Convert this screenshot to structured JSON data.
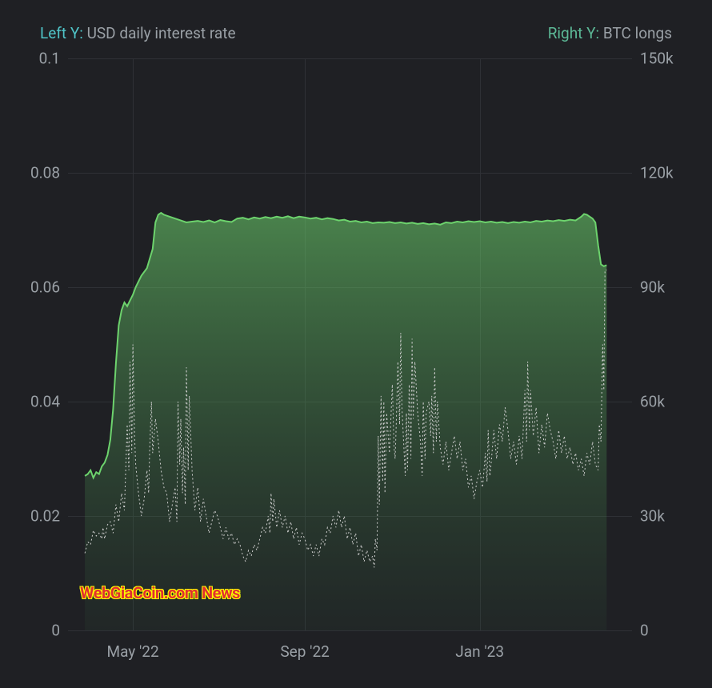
{
  "legend": {
    "left_prefix": "Left Y:",
    "left_label": "USD daily interest rate",
    "right_prefix": "Right Y:",
    "right_label": "BTC longs"
  },
  "chart": {
    "type": "line-area",
    "background_color": "#1f2024",
    "grid_color": "#2f3136",
    "text_color": "#9aa0a6",
    "label_fontsize": 19,
    "axis_left": {
      "color": "#4fc3c7",
      "ylim": [
        0,
        0.1
      ],
      "ticks": [
        0,
        0.02,
        0.04,
        0.06,
        0.08,
        0.1
      ],
      "tick_labels": [
        "0",
        "0.02",
        "0.04",
        "0.06",
        "0.08",
        "0.1"
      ]
    },
    "axis_right": {
      "color": "#5cb896",
      "ylim": [
        0,
        150000
      ],
      "ticks": [
        0,
        30000,
        60000,
        90000,
        120000,
        150000
      ],
      "tick_labels": [
        "0",
        "30k",
        "60k",
        "90k",
        "120k",
        "150k"
      ]
    },
    "axis_x": {
      "range_months": 13,
      "ticks": [
        0.115,
        0.42,
        0.73
      ],
      "tick_labels": [
        "May '22",
        "Sep '22",
        "Jan '23"
      ]
    },
    "series_area": {
      "name": "BTC longs",
      "axis": "right",
      "color_line": "#6dd36d",
      "color_fill_top": "rgba(109,211,109,0.55)",
      "color_fill_bottom": "rgba(60,120,70,0.08)",
      "line_width": 2,
      "data": [
        [
          0.03,
          40500
        ],
        [
          0.035,
          41000
        ],
        [
          0.04,
          42000
        ],
        [
          0.045,
          40000
        ],
        [
          0.05,
          41500
        ],
        [
          0.055,
          41000
        ],
        [
          0.06,
          43000
        ],
        [
          0.065,
          44000
        ],
        [
          0.07,
          46000
        ],
        [
          0.075,
          50000
        ],
        [
          0.08,
          58000
        ],
        [
          0.085,
          70000
        ],
        [
          0.09,
          80000
        ],
        [
          0.095,
          84000
        ],
        [
          0.1,
          86000
        ],
        [
          0.105,
          85000
        ],
        [
          0.11,
          86500
        ],
        [
          0.115,
          88000
        ],
        [
          0.12,
          90000
        ],
        [
          0.13,
          93000
        ],
        [
          0.14,
          95000
        ],
        [
          0.15,
          100000
        ],
        [
          0.155,
          107000
        ],
        [
          0.16,
          109000
        ],
        [
          0.165,
          109500
        ],
        [
          0.17,
          109000
        ],
        [
          0.18,
          108500
        ],
        [
          0.19,
          108000
        ],
        [
          0.2,
          107500
        ],
        [
          0.21,
          107000
        ],
        [
          0.22,
          107200
        ],
        [
          0.23,
          107400
        ],
        [
          0.24,
          107100
        ],
        [
          0.25,
          107500
        ],
        [
          0.26,
          107000
        ],
        [
          0.27,
          107600
        ],
        [
          0.28,
          107300
        ],
        [
          0.29,
          107100
        ],
        [
          0.3,
          108000
        ],
        [
          0.31,
          108200
        ],
        [
          0.32,
          107800
        ],
        [
          0.33,
          108300
        ],
        [
          0.34,
          108000
        ],
        [
          0.35,
          108400
        ],
        [
          0.36,
          108100
        ],
        [
          0.37,
          108500
        ],
        [
          0.38,
          108200
        ],
        [
          0.39,
          108600
        ],
        [
          0.4,
          108100
        ],
        [
          0.41,
          108500
        ],
        [
          0.42,
          108300
        ],
        [
          0.43,
          108000
        ],
        [
          0.44,
          108200
        ],
        [
          0.45,
          107800
        ],
        [
          0.46,
          108100
        ],
        [
          0.47,
          107900
        ],
        [
          0.48,
          107500
        ],
        [
          0.49,
          107700
        ],
        [
          0.5,
          107200
        ],
        [
          0.51,
          107400
        ],
        [
          0.52,
          107000
        ],
        [
          0.53,
          107200
        ],
        [
          0.54,
          106800
        ],
        [
          0.55,
          107000
        ],
        [
          0.56,
          106900
        ],
        [
          0.57,
          107100
        ],
        [
          0.58,
          106800
        ],
        [
          0.59,
          107000
        ],
        [
          0.6,
          106700
        ],
        [
          0.61,
          106900
        ],
        [
          0.62,
          106600
        ],
        [
          0.63,
          106800
        ],
        [
          0.64,
          106500
        ],
        [
          0.65,
          106700
        ],
        [
          0.66,
          106400
        ],
        [
          0.67,
          107000
        ],
        [
          0.68,
          106800
        ],
        [
          0.69,
          107200
        ],
        [
          0.7,
          107000
        ],
        [
          0.71,
          107300
        ],
        [
          0.72,
          107100
        ],
        [
          0.73,
          107300
        ],
        [
          0.74,
          107000
        ],
        [
          0.75,
          107200
        ],
        [
          0.76,
          106900
        ],
        [
          0.77,
          107100
        ],
        [
          0.78,
          106800
        ],
        [
          0.79,
          107100
        ],
        [
          0.8,
          106900
        ],
        [
          0.81,
          107200
        ],
        [
          0.82,
          107000
        ],
        [
          0.83,
          107400
        ],
        [
          0.84,
          107200
        ],
        [
          0.85,
          107500
        ],
        [
          0.86,
          107300
        ],
        [
          0.87,
          107600
        ],
        [
          0.88,
          107400
        ],
        [
          0.89,
          107700
        ],
        [
          0.9,
          107500
        ],
        [
          0.91,
          108500
        ],
        [
          0.915,
          109200
        ],
        [
          0.92,
          109000
        ],
        [
          0.925,
          108500
        ],
        [
          0.93,
          108000
        ],
        [
          0.935,
          107000
        ],
        [
          0.94,
          101000
        ],
        [
          0.945,
          96000
        ],
        [
          0.95,
          95500
        ],
        [
          0.955,
          95800
        ]
      ]
    },
    "series_line": {
      "name": "USD daily interest rate",
      "axis": "left",
      "color": "#cccccc",
      "line_width": 1,
      "dash": "2,3",
      "data": [
        [
          0.03,
          0.0135
        ],
        [
          0.035,
          0.0155
        ],
        [
          0.04,
          0.015
        ],
        [
          0.045,
          0.0175
        ],
        [
          0.05,
          0.0165
        ],
        [
          0.055,
          0.017
        ],
        [
          0.06,
          0.016
        ],
        [
          0.062,
          0.018
        ],
        [
          0.065,
          0.016
        ],
        [
          0.07,
          0.0185
        ],
        [
          0.075,
          0.019
        ],
        [
          0.08,
          0.017
        ],
        [
          0.085,
          0.022
        ],
        [
          0.09,
          0.019
        ],
        [
          0.095,
          0.024
        ],
        [
          0.1,
          0.021
        ],
        [
          0.105,
          0.036
        ],
        [
          0.108,
          0.028
        ],
        [
          0.11,
          0.047
        ],
        [
          0.113,
          0.031
        ],
        [
          0.115,
          0.05
        ],
        [
          0.118,
          0.034
        ],
        [
          0.12,
          0.029
        ],
        [
          0.125,
          0.024
        ],
        [
          0.13,
          0.02
        ],
        [
          0.135,
          0.023
        ],
        [
          0.14,
          0.028
        ],
        [
          0.143,
          0.024
        ],
        [
          0.145,
          0.032
        ],
        [
          0.148,
          0.04
        ],
        [
          0.15,
          0.031
        ],
        [
          0.155,
          0.037
        ],
        [
          0.16,
          0.033
        ],
        [
          0.165,
          0.028
        ],
        [
          0.17,
          0.025
        ],
        [
          0.175,
          0.024
        ],
        [
          0.18,
          0.019
        ],
        [
          0.185,
          0.022
        ],
        [
          0.19,
          0.025
        ],
        [
          0.193,
          0.019
        ],
        [
          0.195,
          0.04
        ],
        [
          0.198,
          0.029
        ],
        [
          0.2,
          0.037
        ],
        [
          0.203,
          0.024
        ],
        [
          0.205,
          0.032
        ],
        [
          0.208,
          0.022
        ],
        [
          0.21,
          0.046
        ],
        [
          0.213,
          0.028
        ],
        [
          0.215,
          0.041
        ],
        [
          0.22,
          0.028
        ],
        [
          0.225,
          0.021
        ],
        [
          0.23,
          0.025
        ],
        [
          0.235,
          0.019
        ],
        [
          0.24,
          0.023
        ],
        [
          0.245,
          0.02
        ],
        [
          0.25,
          0.017
        ],
        [
          0.255,
          0.019
        ],
        [
          0.26,
          0.021
        ],
        [
          0.265,
          0.02
        ],
        [
          0.27,
          0.018
        ],
        [
          0.275,
          0.016
        ],
        [
          0.28,
          0.018
        ],
        [
          0.285,
          0.016
        ],
        [
          0.29,
          0.017
        ],
        [
          0.295,
          0.015
        ],
        [
          0.3,
          0.016
        ],
        [
          0.305,
          0.015
        ],
        [
          0.31,
          0.013
        ],
        [
          0.315,
          0.012
        ],
        [
          0.32,
          0.014
        ],
        [
          0.325,
          0.013
        ],
        [
          0.33,
          0.015
        ],
        [
          0.335,
          0.014
        ],
        [
          0.34,
          0.016
        ],
        [
          0.345,
          0.018
        ],
        [
          0.35,
          0.017
        ],
        [
          0.355,
          0.02
        ],
        [
          0.358,
          0.017
        ],
        [
          0.36,
          0.024
        ],
        [
          0.363,
          0.019
        ],
        [
          0.365,
          0.023
        ],
        [
          0.37,
          0.018
        ],
        [
          0.375,
          0.021
        ],
        [
          0.38,
          0.018
        ],
        [
          0.385,
          0.02
        ],
        [
          0.39,
          0.017
        ],
        [
          0.395,
          0.019
        ],
        [
          0.4,
          0.016
        ],
        [
          0.405,
          0.018
        ],
        [
          0.41,
          0.015
        ],
        [
          0.415,
          0.017
        ],
        [
          0.42,
          0.016
        ],
        [
          0.425,
          0.014
        ],
        [
          0.43,
          0.015
        ],
        [
          0.435,
          0.013
        ],
        [
          0.44,
          0.015
        ],
        [
          0.445,
          0.013
        ],
        [
          0.45,
          0.016
        ],
        [
          0.455,
          0.015
        ],
        [
          0.46,
          0.018
        ],
        [
          0.465,
          0.017
        ],
        [
          0.47,
          0.02
        ],
        [
          0.475,
          0.018
        ],
        [
          0.48,
          0.021
        ],
        [
          0.485,
          0.018
        ],
        [
          0.49,
          0.02
        ],
        [
          0.495,
          0.016
        ],
        [
          0.5,
          0.018
        ],
        [
          0.505,
          0.015
        ],
        [
          0.51,
          0.017
        ],
        [
          0.515,
          0.013
        ],
        [
          0.52,
          0.015
        ],
        [
          0.525,
          0.012
        ],
        [
          0.53,
          0.014
        ],
        [
          0.535,
          0.012
        ],
        [
          0.54,
          0.013
        ],
        [
          0.543,
          0.011
        ],
        [
          0.545,
          0.016
        ],
        [
          0.548,
          0.014
        ],
        [
          0.55,
          0.034
        ],
        [
          0.552,
          0.022
        ],
        [
          0.555,
          0.041
        ],
        [
          0.558,
          0.026
        ],
        [
          0.56,
          0.04
        ],
        [
          0.562,
          0.024
        ],
        [
          0.565,
          0.038
        ],
        [
          0.57,
          0.031
        ],
        [
          0.575,
          0.043
        ],
        [
          0.578,
          0.032
        ],
        [
          0.58,
          0.03
        ],
        [
          0.582,
          0.036
        ],
        [
          0.585,
          0.047
        ],
        [
          0.588,
          0.036
        ],
        [
          0.59,
          0.052
        ],
        [
          0.592,
          0.039
        ],
        [
          0.595,
          0.033
        ],
        [
          0.598,
          0.027
        ],
        [
          0.6,
          0.038
        ],
        [
          0.602,
          0.028
        ],
        [
          0.605,
          0.043
        ],
        [
          0.608,
          0.03
        ],
        [
          0.61,
          0.051
        ],
        [
          0.612,
          0.037
        ],
        [
          0.615,
          0.047
        ],
        [
          0.62,
          0.038
        ],
        [
          0.625,
          0.033
        ],
        [
          0.628,
          0.027
        ],
        [
          0.63,
          0.04
        ],
        [
          0.633,
          0.03
        ],
        [
          0.635,
          0.038
        ],
        [
          0.64,
          0.04
        ],
        [
          0.643,
          0.034
        ],
        [
          0.645,
          0.041
        ],
        [
          0.648,
          0.031
        ],
        [
          0.65,
          0.046
        ],
        [
          0.653,
          0.033
        ],
        [
          0.655,
          0.04
        ],
        [
          0.66,
          0.032
        ],
        [
          0.665,
          0.029
        ],
        [
          0.67,
          0.033
        ],
        [
          0.675,
          0.028
        ],
        [
          0.68,
          0.031
        ],
        [
          0.685,
          0.034
        ],
        [
          0.69,
          0.03
        ],
        [
          0.695,
          0.033
        ],
        [
          0.7,
          0.028
        ],
        [
          0.705,
          0.03
        ],
        [
          0.71,
          0.025
        ],
        [
          0.715,
          0.027
        ],
        [
          0.72,
          0.023
        ],
        [
          0.725,
          0.026
        ],
        [
          0.73,
          0.028
        ],
        [
          0.735,
          0.025
        ],
        [
          0.74,
          0.031
        ],
        [
          0.743,
          0.026
        ],
        [
          0.745,
          0.035
        ],
        [
          0.748,
          0.027
        ],
        [
          0.75,
          0.029
        ],
        [
          0.755,
          0.035
        ],
        [
          0.76,
          0.03
        ],
        [
          0.765,
          0.036
        ],
        [
          0.77,
          0.033
        ],
        [
          0.775,
          0.039
        ],
        [
          0.78,
          0.035
        ],
        [
          0.785,
          0.03
        ],
        [
          0.79,
          0.033
        ],
        [
          0.795,
          0.029
        ],
        [
          0.8,
          0.034
        ],
        [
          0.805,
          0.03
        ],
        [
          0.81,
          0.042
        ],
        [
          0.813,
          0.033
        ],
        [
          0.815,
          0.047
        ],
        [
          0.818,
          0.035
        ],
        [
          0.82,
          0.042
        ],
        [
          0.825,
          0.034
        ],
        [
          0.83,
          0.039
        ],
        [
          0.835,
          0.031
        ],
        [
          0.84,
          0.036
        ],
        [
          0.845,
          0.032
        ],
        [
          0.85,
          0.038
        ],
        [
          0.855,
          0.035
        ],
        [
          0.86,
          0.033
        ],
        [
          0.865,
          0.03
        ],
        [
          0.87,
          0.035
        ],
        [
          0.875,
          0.031
        ],
        [
          0.88,
          0.034
        ],
        [
          0.885,
          0.03
        ],
        [
          0.89,
          0.032
        ],
        [
          0.895,
          0.029
        ],
        [
          0.9,
          0.031
        ],
        [
          0.905,
          0.028
        ],
        [
          0.91,
          0.03
        ],
        [
          0.915,
          0.027
        ],
        [
          0.92,
          0.031
        ],
        [
          0.925,
          0.029
        ],
        [
          0.93,
          0.033
        ],
        [
          0.935,
          0.029
        ],
        [
          0.94,
          0.028
        ],
        [
          0.942,
          0.036
        ],
        [
          0.945,
          0.033
        ],
        [
          0.948,
          0.05
        ],
        [
          0.95,
          0.042
        ],
        [
          0.952,
          0.063
        ],
        [
          0.955,
          0.063
        ]
      ]
    }
  },
  "watermark": {
    "text": "WebGiaCoin.com News",
    "color": "#e03030",
    "outline_color": "#ffff00",
    "fontsize": 20
  }
}
